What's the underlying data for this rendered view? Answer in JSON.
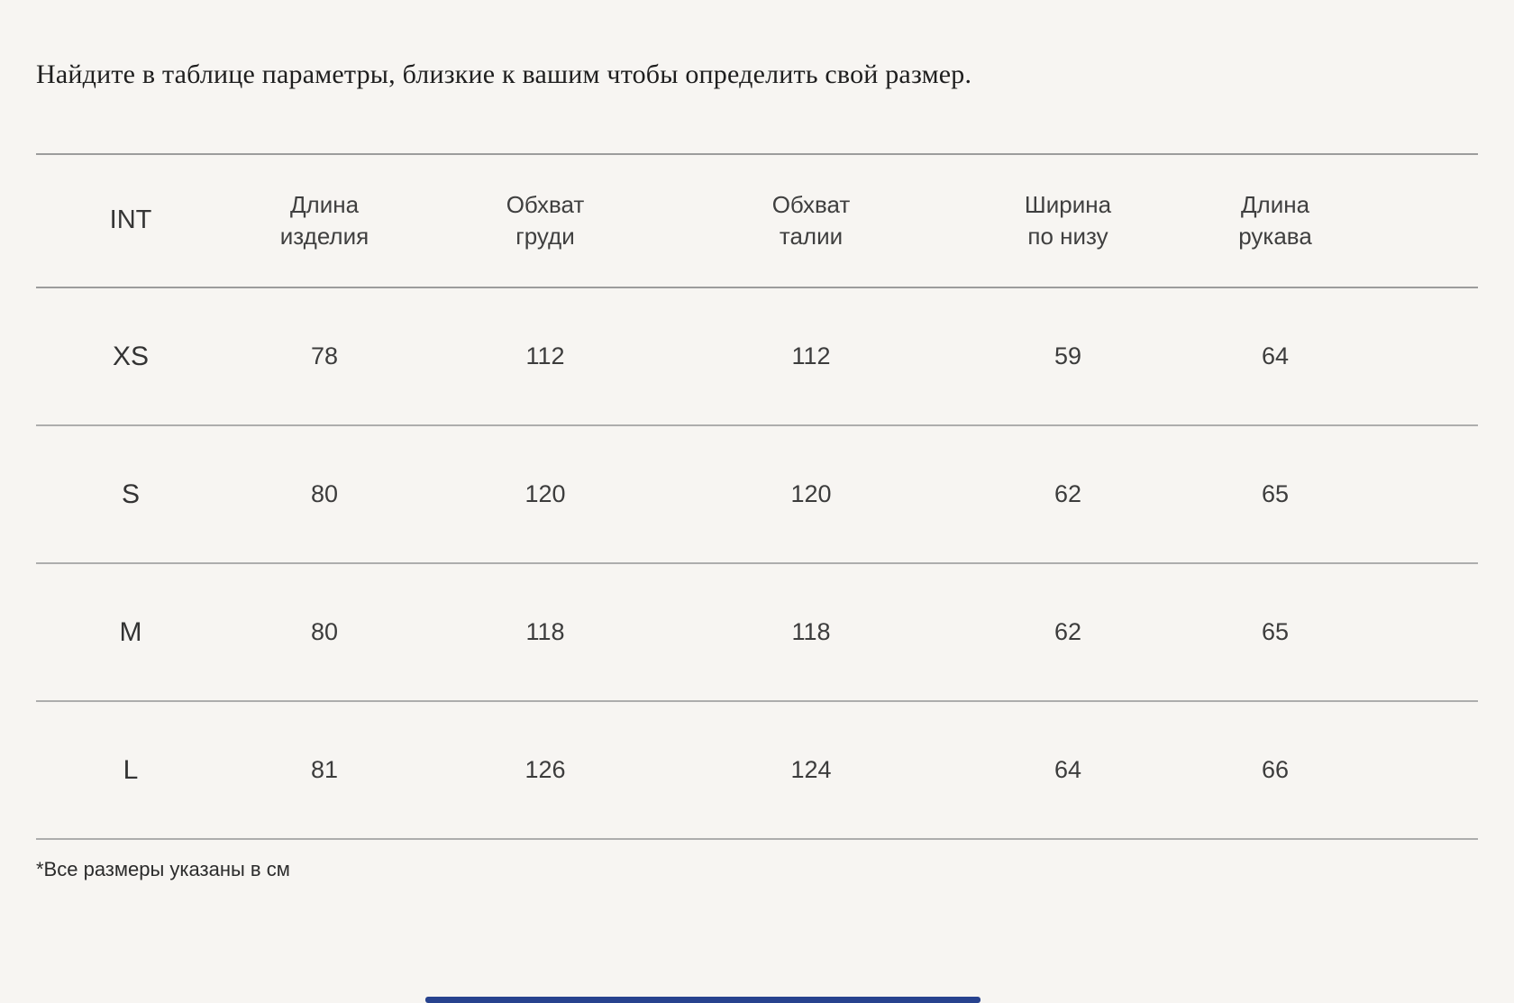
{
  "page": {
    "title": "Найдите в таблице параметры, близкие к вашим чтобы определить свой размер.",
    "footnote": "*Все размеры указаны в см"
  },
  "table": {
    "columns": [
      "INT",
      "Длина изделия",
      "Обхват груди",
      "Обхват талии",
      "Ширина по низу",
      "Длина рукава"
    ],
    "rows": [
      {
        "size": "XS",
        "values": [
          "78",
          "112",
          "112",
          "59",
          "64"
        ]
      },
      {
        "size": "S",
        "values": [
          "80",
          "120",
          "120",
          "62",
          "65"
        ]
      },
      {
        "size": "M",
        "values": [
          "80",
          "118",
          "118",
          "62",
          "65"
        ]
      },
      {
        "size": "L",
        "values": [
          "81",
          "126",
          "124",
          "64",
          "66"
        ]
      }
    ]
  },
  "colors": {
    "background": "#f7f5f2",
    "separator_line": "#a8a8a8",
    "accent_bar": "#27428e",
    "title_text": "#1e1e1e",
    "table_text": "#3c3c3c"
  }
}
